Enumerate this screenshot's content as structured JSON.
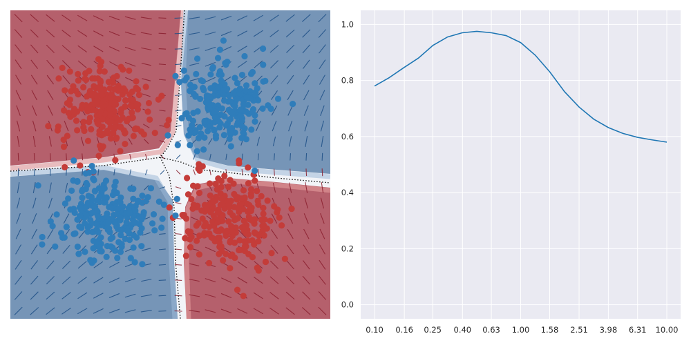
{
  "chart_data": [
    {
      "type": "scatter",
      "subtype": "decision-boundary-contour-with-vector-field",
      "title": "",
      "xlabel": "",
      "ylabel": "",
      "axes_visible": false,
      "grid": false,
      "xlim": [
        -4,
        4
      ],
      "ylim": [
        -4,
        4
      ],
      "classes": [
        {
          "label": "class-red",
          "color": "#c43c39"
        },
        {
          "label": "class-blue",
          "color": "#2f7dba"
        }
      ],
      "clusters": [
        {
          "class": "class-red",
          "center": [
            -1.6,
            1.5
          ],
          "spread": 0.55,
          "points": 230
        },
        {
          "class": "class-red",
          "center": [
            1.4,
            -1.4
          ],
          "spread": 0.6,
          "points": 230
        },
        {
          "class": "class-blue",
          "center": [
            1.3,
            1.6
          ],
          "spread": 0.55,
          "points": 230
        },
        {
          "class": "class-blue",
          "center": [
            -1.6,
            -1.4
          ],
          "spread": 0.6,
          "points": 230
        }
      ],
      "region_colors": {
        "red": "#b0525f",
        "blue": "#6f8fb3",
        "boundary": "#f2f4f8"
      },
      "boundary_line_style": "dotted"
    },
    {
      "type": "line",
      "title": "",
      "xlabel": "",
      "ylabel": "",
      "x_scale": "log",
      "xlim": [
        0.1,
        10
      ],
      "ylim": [
        -0.05,
        1.05
      ],
      "grid": true,
      "x_ticks": [
        "0.10",
        "0.16",
        "0.25",
        "0.40",
        "0.63",
        "1.00",
        "1.58",
        "2.51",
        "3.98",
        "6.31",
        "10.00"
      ],
      "y_ticks": [
        "0.0",
        "0.2",
        "0.4",
        "0.6",
        "0.8",
        "1.0"
      ],
      "series": [
        {
          "color": "#1f77b4",
          "x": [
            0.1,
            0.126,
            0.158,
            0.2,
            0.251,
            0.316,
            0.398,
            0.501,
            0.631,
            0.794,
            1.0,
            1.259,
            1.585,
            1.995,
            2.512,
            3.162,
            3.981,
            5.012,
            6.31,
            7.943,
            10.0
          ],
          "y": [
            0.78,
            0.81,
            0.845,
            0.88,
            0.925,
            0.955,
            0.97,
            0.975,
            0.97,
            0.96,
            0.935,
            0.89,
            0.83,
            0.76,
            0.705,
            0.662,
            0.632,
            0.611,
            0.597,
            0.588,
            0.58
          ]
        }
      ]
    }
  ]
}
